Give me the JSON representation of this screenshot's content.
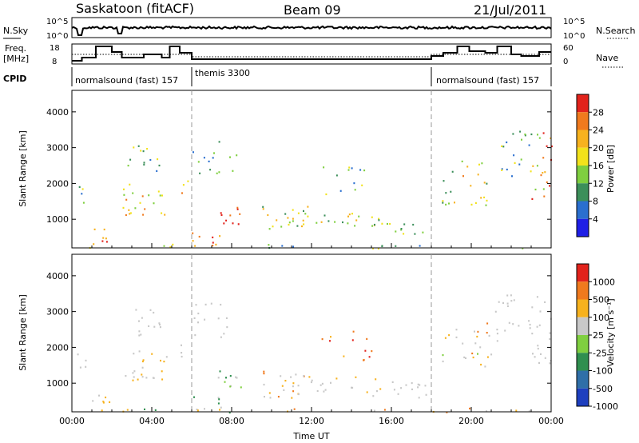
{
  "header": {
    "title": "Saskatoon (fitACF)",
    "beam": "Beam 09",
    "date": "21/Jul/2011"
  },
  "strip_panels": {
    "noise": {
      "left_label": "N.Sky",
      "left_ticks": [
        "10^5",
        "10^0"
      ],
      "right_ticks": [
        "10^5",
        "10^0"
      ],
      "right_label": "N.Search",
      "right_legend_style": "dotted"
    },
    "frequency": {
      "left_label_line1": "Freq.",
      "left_label_line2": "[MHz]",
      "left_ticks": [
        "18",
        "8"
      ],
      "right_ticks": [
        "60",
        "0"
      ],
      "right_label": "Nave",
      "right_legend_style": "dotted"
    },
    "cpid": {
      "label": "CPID",
      "segments": [
        {
          "label": "normalsound (fast) 157",
          "start_hour": 0
        },
        {
          "label": "themis 3300",
          "start_hour": 6
        },
        {
          "label": "normalsound (fast) 157",
          "start_hour": 18
        }
      ]
    }
  },
  "chart_data": [
    {
      "type": "heatmap",
      "name": "power",
      "ylabel": "Slant Range [km]",
      "yticks": [
        "1000",
        "2000",
        "3000",
        "4000"
      ],
      "ylim": [
        200,
        4600
      ],
      "xlim_hours": [
        0,
        24
      ],
      "colorbar_label": "Power [dB]",
      "colorbar_ticks": [
        "4",
        "8",
        "12",
        "16",
        "20",
        "24",
        "28"
      ],
      "colorbar_colors": [
        "#1f1fe6",
        "#2a6fcf",
        "#3c8f5a",
        "#7fcf3f",
        "#f2e21b",
        "#f7b21e",
        "#f07a1e",
        "#e2231c"
      ]
    },
    {
      "type": "heatmap",
      "name": "velocity",
      "ylabel": "Slant Range [km]",
      "yticks": [
        "1000",
        "2000",
        "3000",
        "4000"
      ],
      "ylim": [
        200,
        4600
      ],
      "xlim_hours": [
        0,
        24
      ],
      "xlabel": "Time UT",
      "xticks": [
        "00:00",
        "04:00",
        "08:00",
        "12:00",
        "16:00",
        "20:00",
        "00:00"
      ],
      "colorbar_label": "Velocity [m s⁻¹]",
      "colorbar_ticks": [
        "1000",
        "500",
        "100",
        "25",
        "-25",
        "-100",
        "-500",
        "-1000"
      ],
      "colorbar_colors": [
        "#1e3fbf",
        "#2f6fa8",
        "#2f8f4f",
        "#7fcf3f",
        "#c8c8c8",
        "#f7b21e",
        "#f07a1e",
        "#e2231c"
      ]
    }
  ]
}
